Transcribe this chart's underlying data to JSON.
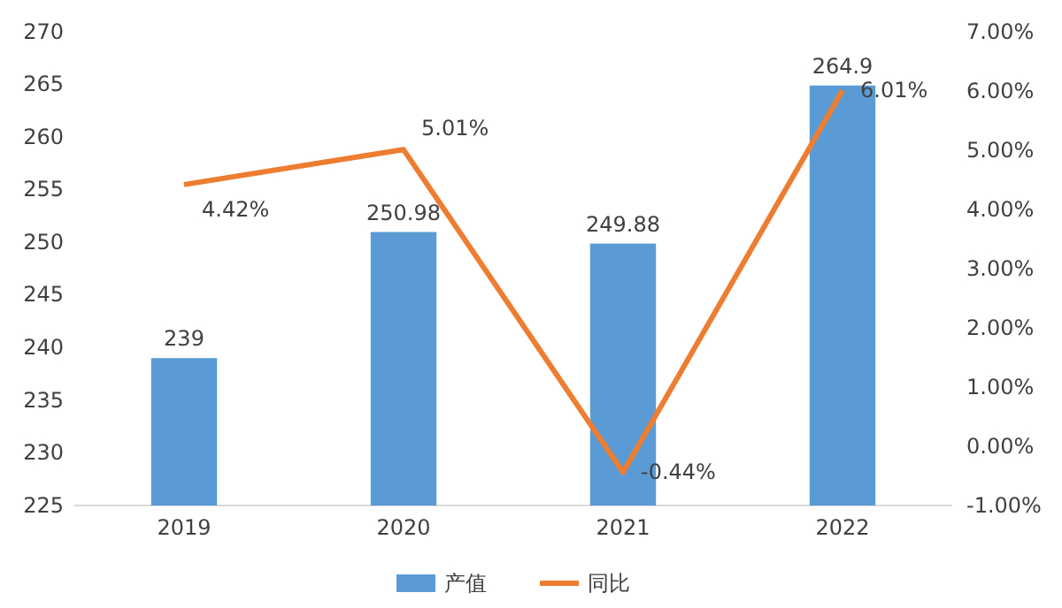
{
  "chart_data": {
    "type": "bar",
    "categories": [
      "2019",
      "2020",
      "2021",
      "2022"
    ],
    "series": [
      {
        "name": "产值",
        "color": "#5b9bd5",
        "values": [
          239,
          250.98,
          249.88,
          264.9
        ]
      },
      {
        "name": "同比",
        "type": "line",
        "axis": "y2",
        "color": "#ed7d31",
        "values": [
          4.42,
          5.01,
          -0.44,
          6.01
        ],
        "value_labels": [
          "4.42%",
          "5.01%",
          "-0.44%",
          "6.01%"
        ]
      }
    ],
    "data_labels": true,
    "ylim": [
      225,
      270
    ],
    "yticks": [
      225,
      230,
      235,
      240,
      245,
      250,
      255,
      260,
      265,
      270
    ],
    "y2lim": [
      -1,
      7
    ],
    "y2ticks": [
      {
        "value": -1,
        "label": "-1.00%"
      },
      {
        "value": 0,
        "label": "0.00%"
      },
      {
        "value": 1,
        "label": "1.00%"
      },
      {
        "value": 2,
        "label": "2.00%"
      },
      {
        "value": 3,
        "label": "3.00%"
      },
      {
        "value": 4,
        "label": "4.00%"
      },
      {
        "value": 5,
        "label": "5.00%"
      },
      {
        "value": 6,
        "label": "6.00%"
      },
      {
        "value": 7,
        "label": "7.00%"
      }
    ],
    "legend": "bottom",
    "line_style": "solid",
    "marker": "none"
  }
}
